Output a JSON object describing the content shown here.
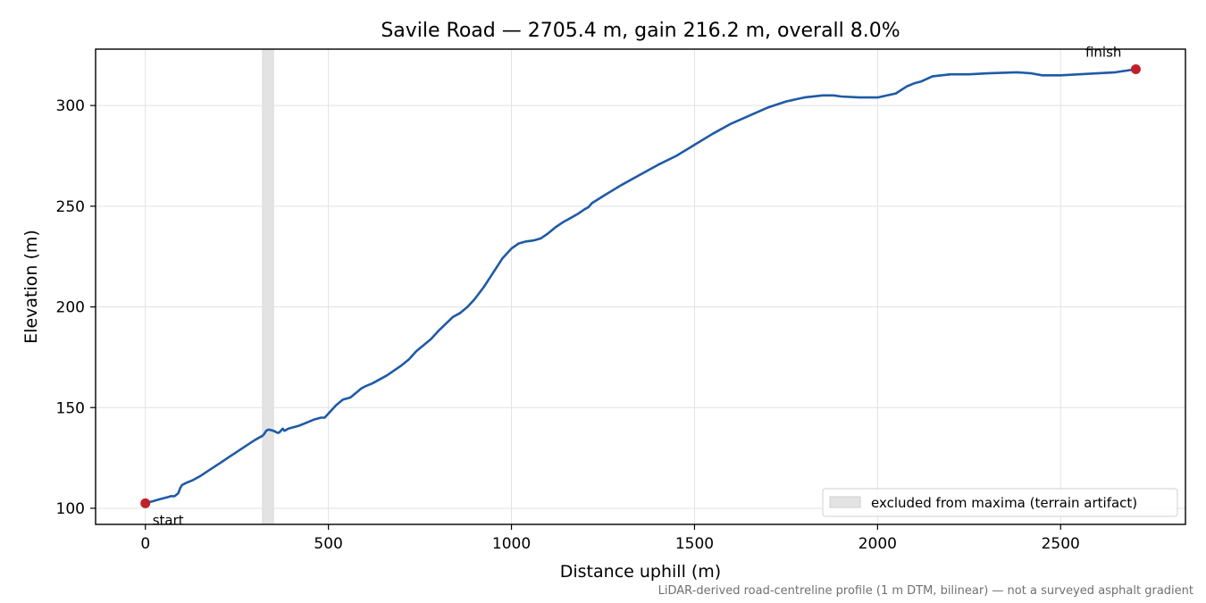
{
  "chart_data": {
    "type": "line",
    "title": "Savile Road — 2705.4 m, gain 216.2 m, overall 8.0%",
    "xlabel": "Distance uphill (m)",
    "ylabel": "Elevation (m)",
    "xlim": [
      -136,
      2841
    ],
    "ylim": [
      92,
      328
    ],
    "xticks": [
      0,
      500,
      1000,
      1500,
      2000,
      2500
    ],
    "yticks": [
      100,
      150,
      200,
      250,
      300
    ],
    "grid": true,
    "legend_position": "lower-right",
    "legend": [
      {
        "label": "excluded from maxima (terrain artifact)",
        "color": "#e3e3e3"
      }
    ],
    "excluded_band": {
      "x_from": 320,
      "x_to": 350
    },
    "series": [
      {
        "color": "#1f5aa6",
        "x": [
          0,
          20,
          40,
          60,
          70,
          80,
          90,
          95,
          100,
          110,
          130,
          150,
          175,
          200,
          225,
          250,
          275,
          300,
          320,
          325,
          330,
          335,
          340,
          350,
          360,
          365,
          370,
          375,
          380,
          385,
          390,
          400,
          420,
          440,
          460,
          480,
          490,
          500,
          520,
          540,
          560,
          570,
          580,
          590,
          600,
          620,
          640,
          660,
          680,
          700,
          720,
          740,
          760,
          780,
          790,
          800,
          820,
          840,
          860,
          880,
          900,
          925,
          950,
          975,
          1000,
          1020,
          1040,
          1060,
          1080,
          1100,
          1120,
          1140,
          1160,
          1180,
          1200,
          1210,
          1220,
          1250,
          1300,
          1350,
          1400,
          1450,
          1500,
          1550,
          1600,
          1650,
          1700,
          1750,
          1800,
          1850,
          1880,
          1900,
          1950,
          2000,
          2050,
          2080,
          2100,
          2120,
          2150,
          2200,
          2250,
          2300,
          2380,
          2420,
          2450,
          2500,
          2550,
          2600,
          2650,
          2705.4
        ],
        "y": [
          102.5,
          103.5,
          104.5,
          105.5,
          106,
          106,
          107.5,
          110,
          111.5,
          112.5,
          114,
          116,
          119,
          122,
          125,
          128,
          131,
          134,
          136,
          137,
          138.5,
          139,
          139,
          138.5,
          137.5,
          137.5,
          138.5,
          139.5,
          138.5,
          139,
          139.5,
          140,
          141,
          142.5,
          144,
          145,
          145,
          147,
          151,
          154,
          155,
          156.5,
          158,
          159.5,
          160.5,
          162,
          164,
          166,
          168.5,
          171,
          174,
          178,
          181,
          184,
          186,
          188,
          191.5,
          195,
          197,
          200,
          204,
          210,
          217,
          224,
          229,
          231.5,
          232.5,
          233,
          234,
          236.5,
          239.5,
          242,
          244,
          246,
          248.5,
          249.5,
          251.5,
          255,
          260.5,
          265.5,
          270.5,
          275,
          280.5,
          286,
          291,
          295,
          299,
          302,
          304,
          305,
          305,
          304.5,
          304,
          304,
          306,
          309.5,
          311,
          312,
          314.5,
          315.5,
          315.5,
          316,
          316.5,
          316,
          315,
          315,
          315.5,
          316,
          316.5,
          318
        ]
      }
    ],
    "points": [
      {
        "label": "start",
        "x": 0,
        "y": 102.5,
        "color": "#c0202a"
      },
      {
        "label": "finish",
        "x": 2705.4,
        "y": 318,
        "color": "#c0202a"
      }
    ],
    "footnote": "LiDAR-derived road-centreline profile (1 m DTM, bilinear) — not a surveyed asphalt gradient"
  }
}
